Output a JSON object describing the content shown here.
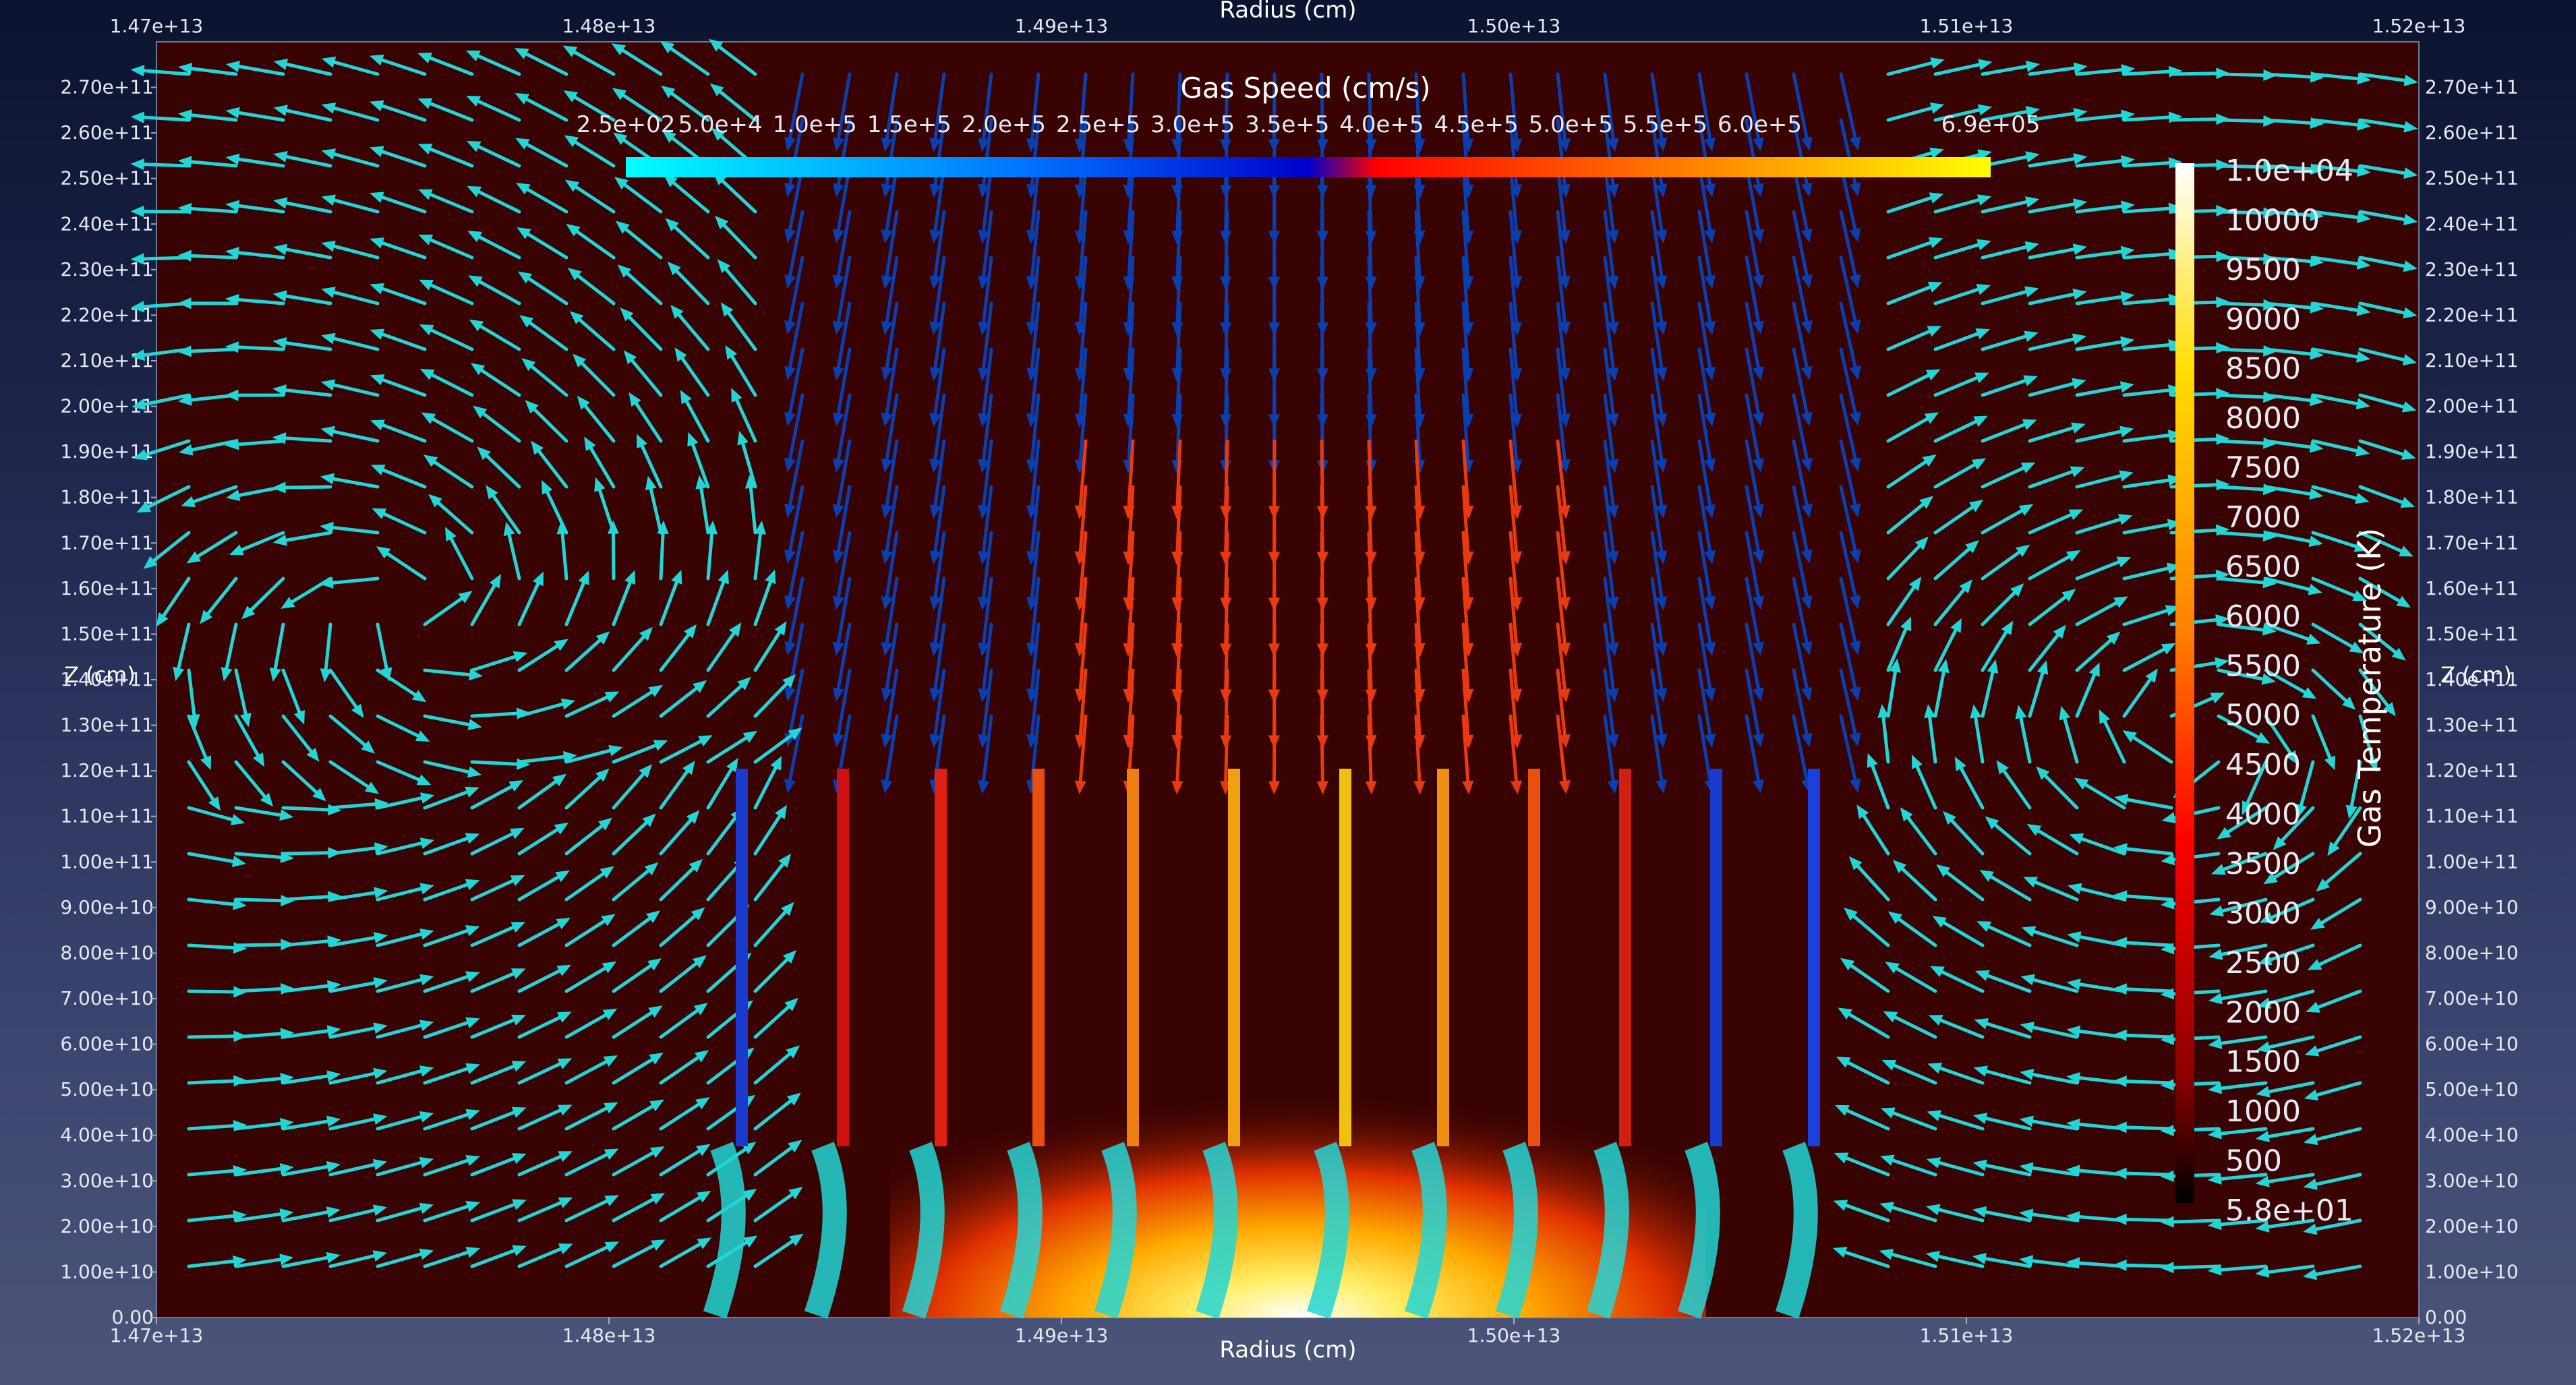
{
  "window": {
    "title": ""
  },
  "chart_data": {
    "type": "vector-field",
    "description_text": "",
    "x_axis": {
      "label": "Radius (cm)",
      "range": [
        14700000000000,
        15200000000000
      ],
      "ticks": [
        "1.47e+13",
        "1.48e+13",
        "1.49e+13",
        "1.50e+13",
        "1.51e+13",
        "1.52e+13"
      ]
    },
    "y_axis": {
      "label": "Z (cm)",
      "range": [
        0,
        280000000000
      ],
      "ticks": [
        "0.00",
        "1.00e+10",
        "2.00e+10",
        "3.00e+10",
        "4.00e+10",
        "5.00e+10",
        "6.00e+10",
        "7.00e+10",
        "8.00e+10",
        "9.00e+10",
        "1.00e+11",
        "1.10e+11",
        "1.20e+11",
        "1.30e+11",
        "1.40e+11",
        "1.50e+11",
        "1.60e+11",
        "1.70e+11",
        "1.80e+11",
        "1.90e+11",
        "2.00e+11",
        "2.10e+11",
        "2.20e+11",
        "2.30e+11",
        "2.40e+11",
        "2.50e+11",
        "2.60e+11",
        "2.70e+11"
      ]
    },
    "speed_colorbar": {
      "title": "Gas Speed (cm/s)",
      "range": [
        250,
        690000
      ],
      "labels": [
        "2.5e+02",
        "5.0e+4",
        "1.0e+5",
        "1.5e+5",
        "2.0e+5",
        "2.5e+5",
        "3.0e+5",
        "3.5e+5",
        "4.0e+5",
        "4.5e+5",
        "5.0e+5",
        "5.5e+5",
        "6.0e+5",
        "6.9e+05"
      ],
      "stops": [
        [
          "#00ffff",
          0
        ],
        [
          "#0070ff",
          0.3
        ],
        [
          "#0000cc",
          0.5
        ],
        [
          "#ff0000",
          0.55
        ],
        [
          "#ff8c00",
          0.8
        ],
        [
          "#ffff00",
          1
        ]
      ]
    },
    "temperature_colorbar": {
      "title": "Gas Temperature (K)",
      "range": [
        58,
        10000
      ],
      "labels": [
        "1.0e+04",
        "10000",
        "9500",
        "9000",
        "8500",
        "8000",
        "7500",
        "7000",
        "6500",
        "6000",
        "5500",
        "5000",
        "4500",
        "4000",
        "3500",
        "3000",
        "2500",
        "2000",
        "1500",
        "1000",
        "500",
        "5.8e+01"
      ],
      "stops": [
        [
          "#000000",
          0
        ],
        [
          "#8b0000",
          0.12
        ],
        [
          "#ff0000",
          0.35
        ],
        [
          "#ff8000",
          0.55
        ],
        [
          "#ffdd00",
          0.8
        ],
        [
          "#ffffff",
          1
        ]
      ]
    },
    "background_temperature_color": "#3a0303",
    "arrow_colors": {
      "slow": "#22d6d6",
      "medium": "#0a3fb0",
      "fast": "#e83a10"
    }
  }
}
